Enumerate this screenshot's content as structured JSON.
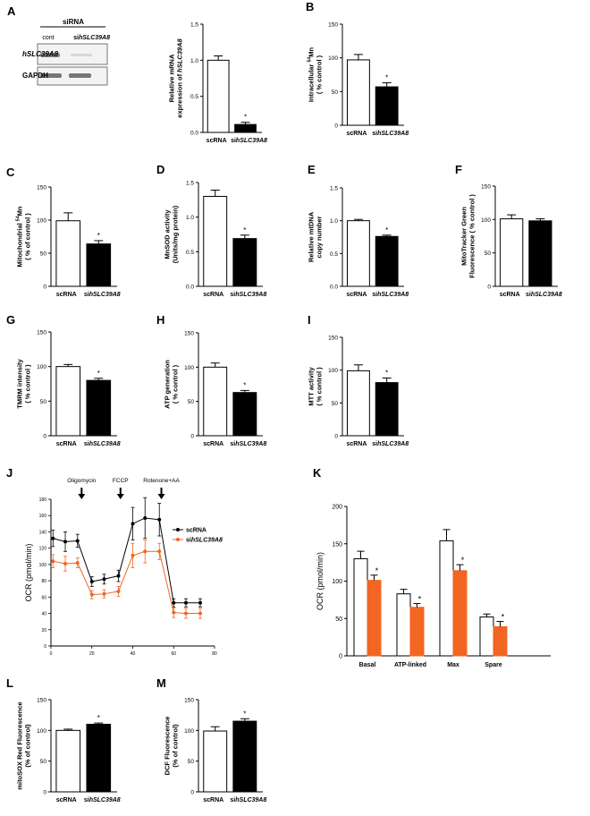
{
  "figure": {
    "panel_a_blot": {
      "letter": "A",
      "header": "siRNA",
      "lanes": [
        "cont",
        "si",
        "hSLC39A8"
      ],
      "rows": [
        "hSLC39A8",
        "GAPDH"
      ]
    }
  },
  "chart_data": [
    {
      "id": "A",
      "type": "bar",
      "letter": "A",
      "ylabel": [
        "Relative mRNA",
        "expression of hSLC39A8"
      ],
      "ylim": [
        0,
        1.5
      ],
      "ticks": [
        "0.0",
        "0.5",
        "1.0",
        "1.5"
      ],
      "categories": [
        "scRNA",
        "sihSLC39A8"
      ],
      "values": [
        1.0,
        0.11
      ],
      "errors": [
        0.06,
        0.03
      ],
      "sig": "*"
    },
    {
      "id": "B",
      "type": "bar",
      "letter": "B",
      "ylabel": [
        "Intracellular 54Mn",
        "( % control )"
      ],
      "ylim": [
        0,
        150
      ],
      "ticks": [
        "0",
        "50",
        "100",
        "150"
      ],
      "categories": [
        "scRNA",
        "sihSLC39A8"
      ],
      "values": [
        97,
        57
      ],
      "errors": [
        8,
        6
      ],
      "sig": "*"
    },
    {
      "id": "C",
      "type": "bar",
      "letter": "C",
      "ylabel": [
        "Mitochondrial 54Mn",
        "( % of control )"
      ],
      "ylim": [
        0,
        150
      ],
      "ticks": [
        "0",
        "50",
        "100",
        "150"
      ],
      "categories": [
        "scRNA",
        "sihSLC39A8"
      ],
      "values": [
        99,
        64
      ],
      "errors": [
        12,
        5
      ],
      "sig": "*"
    },
    {
      "id": "D",
      "type": "bar",
      "letter": "D",
      "ylabel": [
        "MnSOD activity",
        "(Units/mg protein)"
      ],
      "ylim": [
        0,
        1.5
      ],
      "ticks": [
        "0.0",
        "0.5",
        "1.0",
        "1.5"
      ],
      "categories": [
        "scRNA",
        "sihSLC39A8"
      ],
      "values": [
        1.3,
        0.69
      ],
      "errors": [
        0.09,
        0.05
      ],
      "sig": "*"
    },
    {
      "id": "E",
      "type": "bar",
      "letter": "E",
      "ylabel": [
        "Relative mtDNA",
        "copy number"
      ],
      "ylim": [
        0,
        1.5
      ],
      "ticks": [
        "0.0",
        "0.5",
        "1.0",
        "1.5"
      ],
      "categories": [
        "scRNA",
        "sihSLC39A8"
      ],
      "values": [
        1.0,
        0.76
      ],
      "errors": [
        0.02,
        0.02
      ],
      "sig": "*"
    },
    {
      "id": "F",
      "type": "bar",
      "letter": "F",
      "ylabel": [
        "MitoTracker Green",
        "Fluorescence ( % control )"
      ],
      "ylim": [
        0,
        150
      ],
      "ticks": [
        "0",
        "50",
        "100",
        "150"
      ],
      "categories": [
        "scRNA",
        "sihSLC39A8"
      ],
      "values": [
        101,
        98
      ],
      "errors": [
        6,
        3
      ],
      "sig": ""
    },
    {
      "id": "G",
      "type": "bar",
      "letter": "G",
      "ylabel": [
        "TMRM intensity",
        "( % control )"
      ],
      "ylim": [
        0,
        150
      ],
      "ticks": [
        "0",
        "50",
        "100",
        "150"
      ],
      "categories": [
        "scRNA",
        "sihSLC39A8"
      ],
      "values": [
        100,
        80
      ],
      "errors": [
        3,
        3
      ],
      "sig": "*"
    },
    {
      "id": "H",
      "type": "bar",
      "letter": "H",
      "ylabel": [
        "ATP generation",
        "( % control )"
      ],
      "ylim": [
        0,
        150
      ],
      "ticks": [
        "0",
        "50",
        "100",
        "150"
      ],
      "categories": [
        "scRNA",
        "sihSLC39A8"
      ],
      "values": [
        100,
        63
      ],
      "errors": [
        6,
        3
      ],
      "sig": "*"
    },
    {
      "id": "I",
      "type": "bar",
      "letter": "I",
      "ylabel": [
        "MTT activity",
        "( % control )"
      ],
      "ylim": [
        0,
        150
      ],
      "ticks": [
        "0",
        "50",
        "100",
        "150"
      ],
      "categories": [
        "scRNA",
        "sihSLC39A8"
      ],
      "values": [
        99,
        81
      ],
      "errors": [
        9,
        7
      ],
      "sig": "*"
    },
    {
      "id": "J",
      "type": "line",
      "letter": "J",
      "xlabel": "",
      "ylabel": "OCR (pmol/min)",
      "xlim": [
        0,
        80
      ],
      "ylim": [
        0,
        180
      ],
      "xticks": [
        "0",
        "20",
        "40",
        "60",
        "80"
      ],
      "yticks": [
        "0",
        "20",
        "40",
        "60",
        "80",
        "100",
        "120",
        "140",
        "160",
        "180"
      ],
      "injections": [
        "Oligomycin",
        "FCCP",
        "Rotenone+AA"
      ],
      "injection_times": [
        15,
        34,
        54
      ],
      "x": [
        1,
        7,
        13,
        20,
        26,
        33,
        40,
        46,
        53,
        60,
        66,
        73
      ],
      "series": [
        {
          "name": "scRNA",
          "color": "#000000",
          "values": [
            132,
            128,
            129,
            79,
            82,
            86,
            150,
            157,
            155,
            53,
            53,
            53
          ],
          "errors": [
            10,
            12,
            8,
            6,
            6,
            7,
            20,
            25,
            20,
            5,
            5,
            5
          ]
        },
        {
          "name": "sihSLC39A8",
          "color": "#f26522",
          "values": [
            104,
            101,
            102,
            63,
            64,
            67,
            111,
            116,
            116,
            41,
            40,
            40
          ],
          "errors": [
            8,
            9,
            6,
            5,
            5,
            6,
            15,
            14,
            10,
            6,
            6,
            6
          ]
        }
      ],
      "legend": [
        "scRNA",
        "si",
        "hSLC39A8"
      ]
    },
    {
      "id": "K",
      "type": "bar",
      "letter": "K",
      "ylabel": "OCR (pmol/min)",
      "ylim": [
        0,
        200
      ],
      "ticks": [
        "0",
        "50",
        "100",
        "150",
        "200"
      ],
      "categories": [
        "Basal",
        "ATP-linked",
        "Max",
        "Spare"
      ],
      "series": [
        {
          "name": "scRNA",
          "color": "#ffffff",
          "values": [
            130,
            83,
            154,
            52
          ],
          "errors": [
            10,
            6,
            15,
            4
          ]
        },
        {
          "name": "sihSLC39A8",
          "color": "#f26522",
          "values": [
            101,
            65,
            114,
            39
          ],
          "errors": [
            7,
            5,
            8,
            7
          ]
        }
      ],
      "sig": [
        "*",
        "*",
        "*",
        "*"
      ]
    },
    {
      "id": "L",
      "type": "bar",
      "letter": "L",
      "ylabel": [
        "mitoSOX Red Fluorescence",
        "(% of control)"
      ],
      "ylim": [
        0,
        150
      ],
      "ticks": [
        "0",
        "50",
        "100",
        "150"
      ],
      "categories": [
        "scRNA",
        "sihSLC39A8"
      ],
      "values": [
        100,
        110
      ],
      "errors": [
        2,
        2
      ],
      "sig": "*"
    },
    {
      "id": "M",
      "type": "bar",
      "letter": "M",
      "ylabel": [
        "DCF Fluorescence",
        "(% of control)"
      ],
      "ylim": [
        0,
        150
      ],
      "ticks": [
        "0",
        "50",
        "100",
        "150"
      ],
      "categories": [
        "scRNA",
        "sihSLC39A8"
      ],
      "values": [
        99,
        115
      ],
      "errors": [
        7,
        4
      ],
      "sig": "*"
    }
  ]
}
